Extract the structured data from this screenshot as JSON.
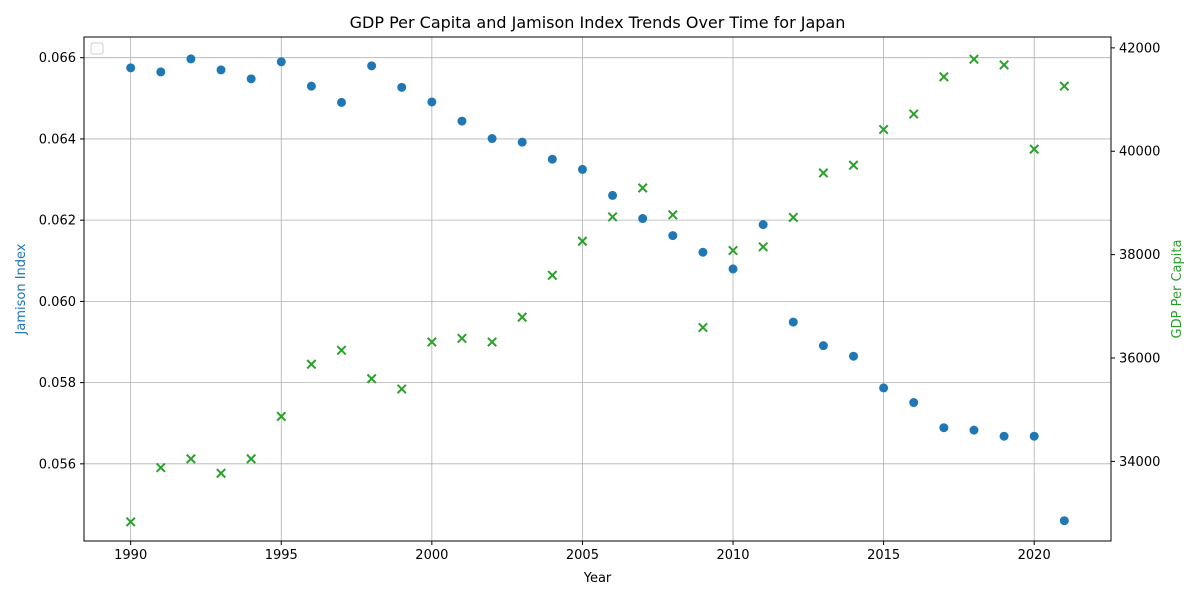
{
  "chart_data": {
    "type": "scatter",
    "title": "GDP Per Capita and Jamison Index Trends Over Time for Japan",
    "xlabel": "Year",
    "ylabel_left": "Jamison Index",
    "ylabel_right": "GDP Per Capita",
    "x": [
      1990,
      1991,
      1992,
      1993,
      1994,
      1995,
      1996,
      1997,
      1998,
      1999,
      2000,
      2001,
      2002,
      2003,
      2004,
      2005,
      2006,
      2007,
      2008,
      2009,
      2010,
      2011,
      2012,
      2013,
      2014,
      2015,
      2016,
      2017,
      2018,
      2019,
      2020,
      2021
    ],
    "xlim": [
      1988.45,
      2022.55
    ],
    "xticks": [
      1990,
      1995,
      2000,
      2005,
      2010,
      2015,
      2020
    ],
    "ylim_left": [
      0.0541,
      0.06651
    ],
    "yticks_left": [
      "0.056",
      "0.058",
      "0.060",
      "0.062",
      "0.064",
      "0.066"
    ],
    "ylim_right": [
      32460,
      42210
    ],
    "yticks_right": [
      "34000",
      "36000",
      "38000",
      "40000",
      "42000"
    ],
    "grid": true,
    "legend": "upper-left (empty)",
    "series": [
      {
        "name": "Jamison Index",
        "axis": "left",
        "marker": "circle",
        "color": "#1f77b4",
        "values": [
          0.06575,
          0.06565,
          0.06597,
          0.0657,
          0.06548,
          0.0659,
          0.0653,
          0.0649,
          0.0658,
          0.06527,
          0.06491,
          0.06444,
          0.06401,
          0.06392,
          0.0635,
          0.06325,
          0.06261,
          0.06204,
          0.06162,
          0.06121,
          0.0608,
          0.06189,
          0.05949,
          0.05891,
          0.05865,
          0.05787,
          0.05751,
          0.05689,
          0.05683,
          0.05668,
          0.05668,
          0.0546
        ]
      },
      {
        "name": "GDP Per Capita",
        "axis": "right",
        "marker": "x",
        "color": "#2ca02c",
        "values": [
          32830,
          33880,
          34050,
          33770,
          34050,
          34870,
          35880,
          36150,
          35600,
          35400,
          36310,
          36380,
          36310,
          36790,
          37600,
          38260,
          38730,
          39290,
          38770,
          36590,
          38080,
          38150,
          38720,
          39580,
          39730,
          40420,
          40720,
          41440,
          41780,
          41670,
          40040,
          41260
        ]
      }
    ]
  }
}
